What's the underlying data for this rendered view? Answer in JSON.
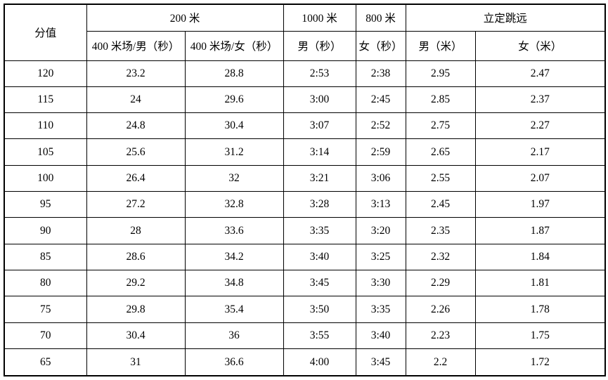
{
  "table": {
    "header": {
      "score": "分值",
      "m200": "200 米",
      "m200_male": "400 米场/男（秒）",
      "m200_female": "400 米场/女（秒）",
      "m1000": "1000 米",
      "m1000_male": "男（秒）",
      "m800": "800 米",
      "m800_female": "女（秒）",
      "jump": "立定跳远",
      "jump_male": "男（米）",
      "jump_female": "女（米）"
    },
    "rows": [
      {
        "cells": [
          "120",
          "23.2",
          "28.8",
          "2:53",
          "2:38",
          "2.95",
          "2.47"
        ]
      },
      {
        "cells": [
          "115",
          "24",
          "29.6",
          "3:00",
          "2:45",
          "2.85",
          "2.37"
        ]
      },
      {
        "cells": [
          "110",
          "24.8",
          "30.4",
          "3:07",
          "2:52",
          "2.75",
          "2.27"
        ]
      },
      {
        "cells": [
          "105",
          "25.6",
          "31.2",
          "3:14",
          "2:59",
          "2.65",
          "2.17"
        ]
      },
      {
        "cells": [
          "100",
          "26.4",
          "32",
          "3:21",
          "3:06",
          "2.55",
          "2.07"
        ]
      },
      {
        "cells": [
          "95",
          "27.2",
          "32.8",
          "3:28",
          "3:13",
          "2.45",
          "1.97"
        ]
      },
      {
        "cells": [
          "90",
          "28",
          "33.6",
          "3:35",
          "3:20",
          "2.35",
          "1.87"
        ]
      },
      {
        "cells": [
          "85",
          "28.6",
          "34.2",
          "3:40",
          "3:25",
          "2.32",
          "1.84"
        ]
      },
      {
        "cells": [
          "80",
          "29.2",
          "34.8",
          "3:45",
          "3:30",
          "2.29",
          "1.81"
        ]
      },
      {
        "cells": [
          "75",
          "29.8",
          "35.4",
          "3:50",
          "3:35",
          "2.26",
          "1.78"
        ]
      },
      {
        "cells": [
          "70",
          "30.4",
          "36",
          "3:55",
          "3:40",
          "2.23",
          "1.75"
        ]
      },
      {
        "cells": [
          "65",
          "31",
          "36.6",
          "4:00",
          "3:45",
          "2.2",
          "1.72"
        ]
      }
    ],
    "colors": {
      "border": "#000000",
      "text": "#000000",
      "background": "#ffffff"
    }
  }
}
